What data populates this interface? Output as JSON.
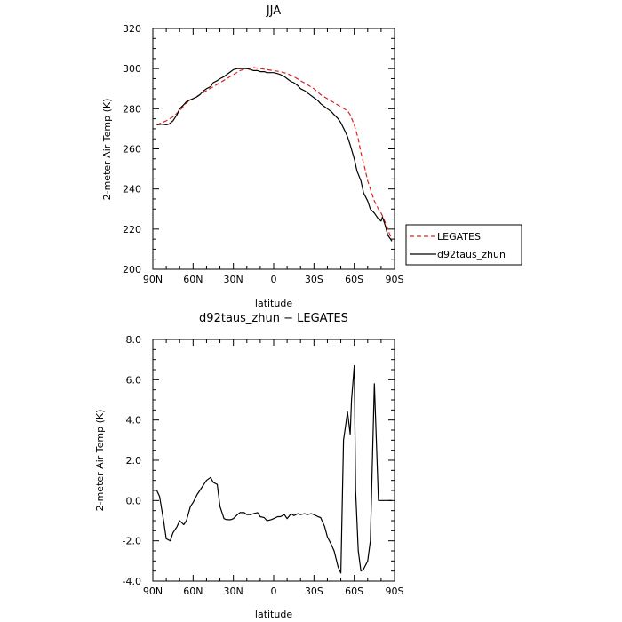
{
  "chart_data": [
    {
      "type": "line",
      "title": "JJA",
      "xlabel": "latitude",
      "ylabel": "2-meter Air Temp (K)",
      "xlim": [
        90,
        -90
      ],
      "ylim": [
        200,
        320
      ],
      "x_tick_values": [
        90,
        60,
        30,
        0,
        -30,
        -60,
        -90
      ],
      "x_tick_labels": [
        "90N",
        "60N",
        "30N",
        "0",
        "30S",
        "60S",
        "90S"
      ],
      "y_tick_values": [
        200,
        220,
        240,
        260,
        280,
        300,
        320
      ],
      "y_tick_labels": [
        "200",
        "220",
        "240",
        "260",
        "280",
        "300",
        "320"
      ],
      "legend": {
        "placement": "outside-right"
      },
      "series": [
        {
          "name": "LEGATES",
          "style": "dashed",
          "color": "#e02020",
          "x": [
            87,
            80,
            75,
            70,
            65,
            60,
            55,
            50,
            45,
            40,
            35,
            30,
            25,
            20,
            15,
            10,
            5,
            0,
            -5,
            -10,
            -15,
            -20,
            -25,
            -30,
            -35,
            -40,
            -45,
            -50,
            -55,
            -57,
            -60,
            -63,
            -65,
            -68,
            -70,
            -73,
            -75,
            -78,
            -80,
            -82,
            -84,
            -86,
            -88
          ],
          "y": [
            272,
            274,
            276,
            279,
            283,
            285,
            287,
            289,
            291,
            293,
            295,
            297,
            299,
            300,
            300.5,
            300,
            299.5,
            299,
            298.5,
            297.5,
            296,
            294,
            292,
            290,
            287,
            285,
            283,
            281,
            279,
            277,
            272,
            265,
            258,
            250,
            244,
            238,
            234,
            230,
            228,
            225,
            222,
            218,
            215
          ]
        },
        {
          "name": "d92taus_zhun",
          "style": "solid",
          "color": "#000000",
          "x": [
            87,
            83,
            80,
            78,
            75,
            72,
            70,
            67,
            65,
            62,
            60,
            57,
            55,
            52,
            50,
            47,
            45,
            42,
            40,
            37,
            35,
            32,
            30,
            27,
            25,
            22,
            20,
            17,
            15,
            12,
            10,
            7,
            5,
            2,
            0,
            -3,
            -5,
            -8,
            -10,
            -13,
            -15,
            -18,
            -20,
            -23,
            -25,
            -28,
            -30,
            -33,
            -35,
            -38,
            -40,
            -43,
            -45,
            -48,
            -50,
            -53,
            -55,
            -57,
            -60,
            -62,
            -65,
            -67,
            -70,
            -72,
            -75,
            -77,
            -78,
            -80,
            -81,
            -83,
            -85,
            -87,
            -88
          ],
          "y": [
            272,
            272.3,
            272,
            272.3,
            274,
            277,
            280,
            282,
            283.5,
            284.5,
            285,
            286,
            287,
            289,
            290,
            291,
            293,
            294,
            295,
            296,
            297,
            298.5,
            299.5,
            300,
            300,
            300,
            300,
            299.5,
            299,
            299,
            298.5,
            298.5,
            298,
            298,
            298,
            297.5,
            297,
            296,
            295,
            293.5,
            293,
            291.5,
            290,
            289,
            288,
            286.5,
            285.5,
            284,
            282.5,
            281,
            280,
            278.5,
            277,
            275,
            273,
            269,
            266,
            262,
            255,
            249,
            244,
            238,
            234,
            230,
            228,
            226,
            225,
            224,
            226,
            222,
            217,
            215,
            214
          ]
        }
      ]
    },
    {
      "type": "line",
      "title": "d92taus_zhun − LEGATES",
      "xlabel": "latitude",
      "ylabel": "2-meter Air Temp (K)",
      "xlim": [
        90,
        -90
      ],
      "ylim": [
        -4,
        8
      ],
      "x_tick_values": [
        90,
        60,
        30,
        0,
        -30,
        -60,
        -90
      ],
      "x_tick_labels": [
        "90N",
        "60N",
        "30N",
        "0",
        "30S",
        "60S",
        "90S"
      ],
      "y_tick_values": [
        -4,
        -2,
        0,
        2,
        4,
        6,
        8
      ],
      "y_tick_labels": [
        "-4.0",
        "-2.0",
        "0.0",
        "2.0",
        "4.0",
        "6.0",
        "8.0"
      ],
      "series": [
        {
          "style": "solid",
          "color": "#000000",
          "x": [
            87,
            85,
            82,
            80,
            77,
            75,
            72,
            70,
            67,
            65,
            62,
            60,
            57,
            55,
            52,
            50,
            47,
            45,
            42,
            40,
            37,
            35,
            32,
            30,
            27,
            25,
            22,
            20,
            17,
            15,
            12,
            10,
            7,
            5,
            2,
            0,
            -3,
            -5,
            -8,
            -10,
            -13,
            -15,
            -18,
            -20,
            -23,
            -25,
            -28,
            -30,
            -33,
            -35,
            -38,
            -40,
            -43,
            -45,
            -48,
            -50,
            -52,
            -55,
            -57,
            -58,
            -60,
            -61,
            -63,
            -65,
            -67,
            -70,
            -72,
            -75,
            -78,
            -80,
            -82,
            -84,
            -86,
            -88
          ],
          "y": [
            0.5,
            0.2,
            -1.0,
            -1.9,
            -2.0,
            -1.6,
            -1.3,
            -1.0,
            -1.2,
            -1.0,
            -0.3,
            -0.1,
            0.3,
            0.5,
            0.8,
            1.0,
            1.15,
            0.9,
            0.8,
            -0.3,
            -0.9,
            -0.95,
            -0.95,
            -0.9,
            -0.7,
            -0.6,
            -0.6,
            -0.7,
            -0.7,
            -0.65,
            -0.6,
            -0.8,
            -0.85,
            -1.0,
            -0.95,
            -0.9,
            -0.8,
            -0.8,
            -0.7,
            -0.9,
            -0.65,
            -0.75,
            -0.65,
            -0.7,
            -0.65,
            -0.7,
            -0.65,
            -0.7,
            -0.8,
            -0.85,
            -1.3,
            -1.8,
            -2.2,
            -2.5,
            -3.3,
            -3.6,
            3.0,
            4.4,
            3.3,
            5.0,
            6.7,
            0.5,
            -2.5,
            -3.5,
            -3.4,
            -3.0,
            -2.0,
            5.8,
            0.0,
            0.0,
            0.0,
            0.0,
            0.0,
            0.0
          ]
        }
      ]
    }
  ]
}
